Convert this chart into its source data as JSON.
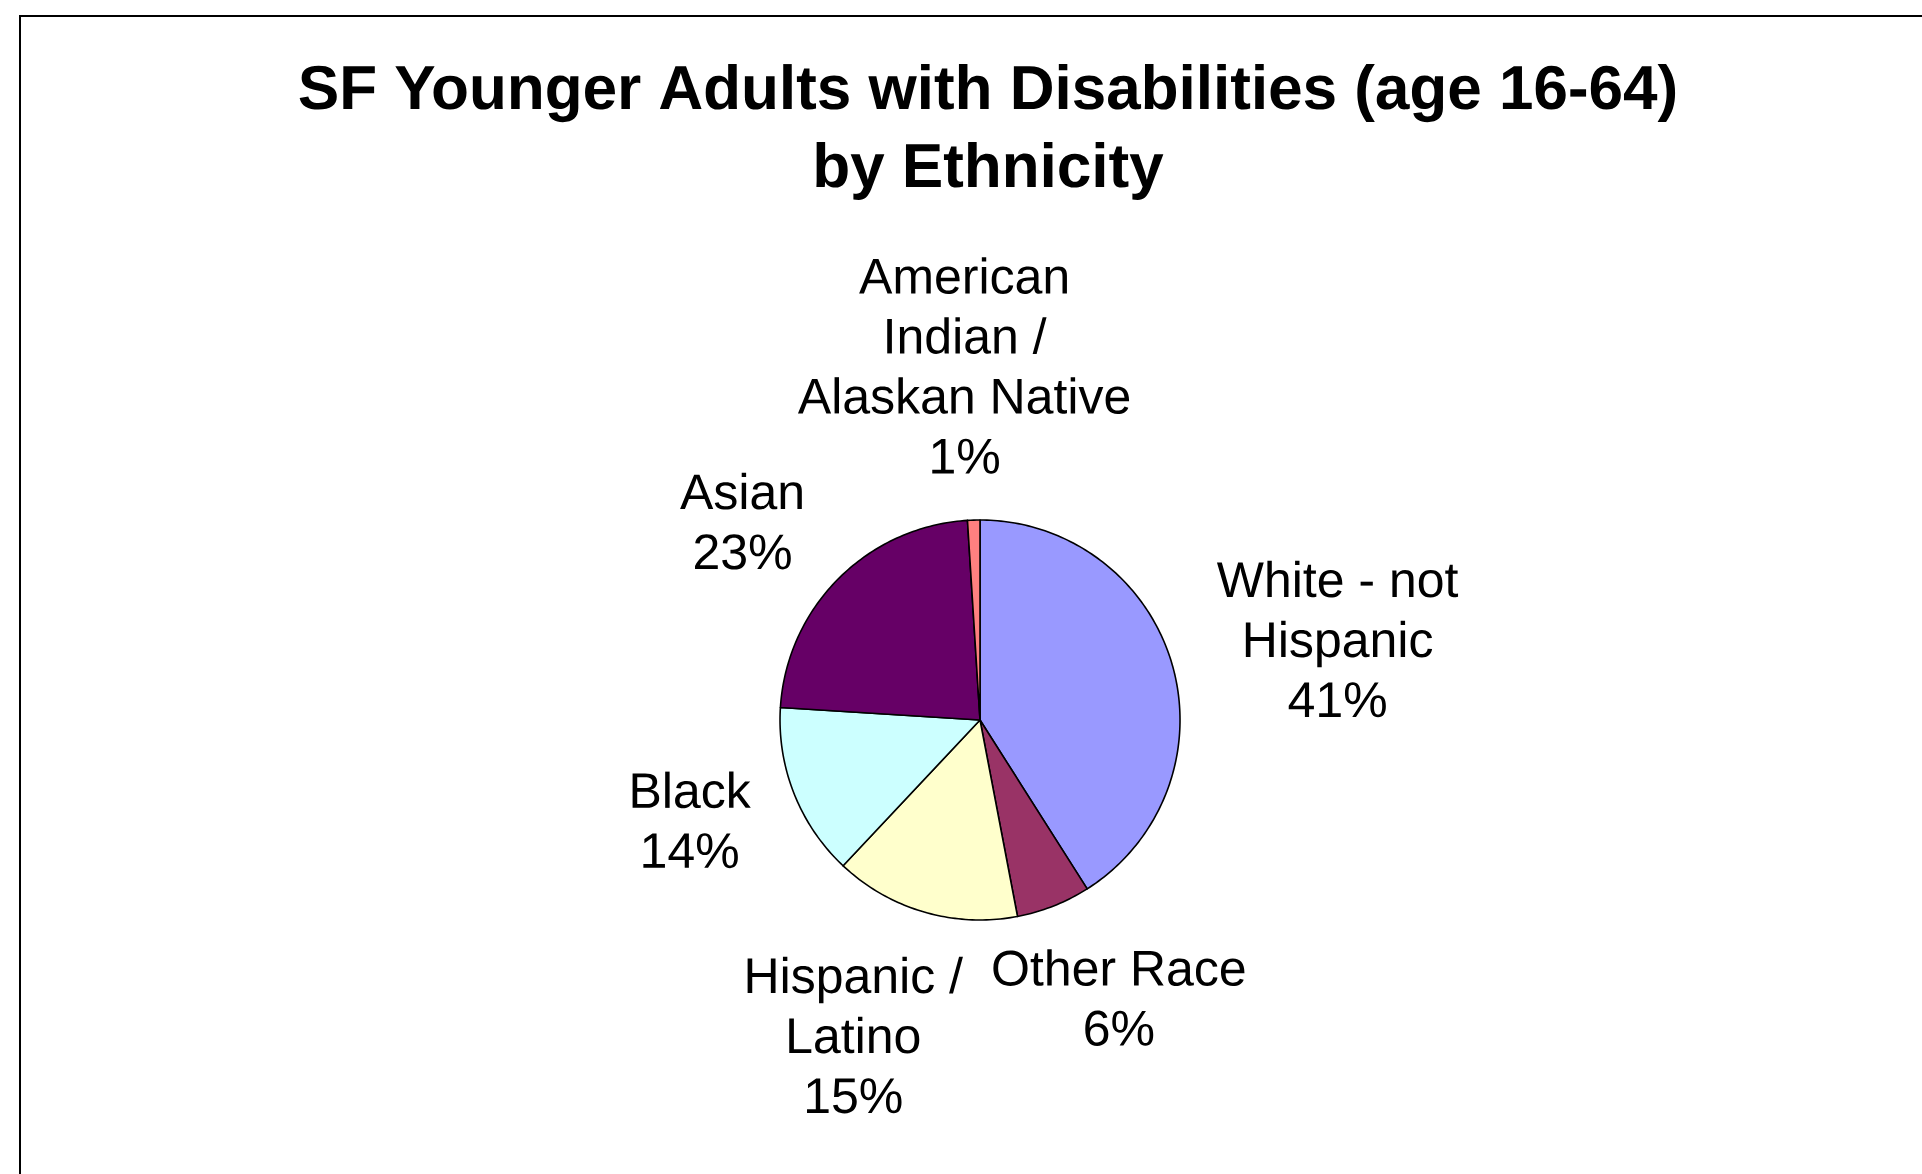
{
  "chart_data": {
    "type": "pie",
    "title": "SF Younger Adults with Disabilities (age 16-64) by Ethnicity",
    "categories": [
      "White - not Hispanic",
      "Other Race",
      "Hispanic / Latino",
      "Black",
      "Asian",
      "American Indian / Alaskan Native"
    ],
    "values": [
      41,
      6,
      15,
      14,
      23,
      1
    ],
    "value_labels": [
      "41%",
      "6%",
      "15%",
      "14%",
      "23%",
      "1%"
    ],
    "colors": [
      "#9999ff",
      "#993366",
      "#ffffcc",
      "#ccffff",
      "#660066",
      "#ff8080"
    ]
  }
}
